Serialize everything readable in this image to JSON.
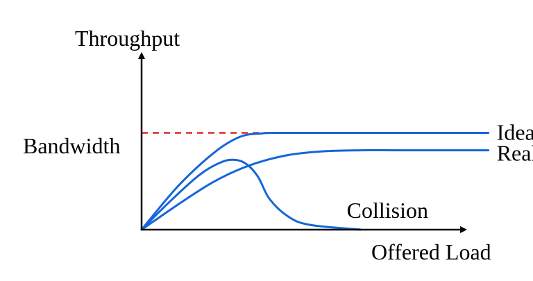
{
  "chart_data": {
    "type": "line",
    "xlabel": "Offered Load",
    "ylabel": "Throughput",
    "reference_line": {
      "label": "Bandwidth",
      "y": 1.0,
      "style": "dashed",
      "color": "#e0262b"
    },
    "xlim": [
      0,
      1
    ],
    "ylim": [
      0,
      1.9
    ],
    "grid": false,
    "series": [
      {
        "name": "Ideal",
        "color": "#1565d8",
        "points": [
          [
            0,
            0
          ],
          [
            0.1,
            0.45
          ],
          [
            0.2,
            0.8
          ],
          [
            0.27,
            0.96
          ],
          [
            0.33,
            0.995
          ],
          [
            0.4,
            1.0
          ],
          [
            0.7,
            1.0
          ],
          [
            0.95,
            1.0
          ]
        ]
      },
      {
        "name": "Reality",
        "color": "#1565d8",
        "points": [
          [
            0,
            0
          ],
          [
            0.1,
            0.26
          ],
          [
            0.2,
            0.5
          ],
          [
            0.3,
            0.67
          ],
          [
            0.4,
            0.77
          ],
          [
            0.5,
            0.81
          ],
          [
            0.6,
            0.82
          ],
          [
            0.7,
            0.82
          ],
          [
            0.95,
            0.82
          ]
        ]
      },
      {
        "name": "Collision",
        "color": "#1565d8",
        "points": [
          [
            0,
            0
          ],
          [
            0.08,
            0.3
          ],
          [
            0.16,
            0.57
          ],
          [
            0.22,
            0.7
          ],
          [
            0.26,
            0.72
          ],
          [
            0.29,
            0.67
          ],
          [
            0.32,
            0.54
          ],
          [
            0.35,
            0.32
          ],
          [
            0.4,
            0.14
          ],
          [
            0.46,
            0.05
          ],
          [
            0.6,
            0.0
          ]
        ]
      }
    ],
    "colors": {
      "axis": "#000000",
      "curve": "#1565d8",
      "bandwidth": "#e0262b"
    }
  }
}
